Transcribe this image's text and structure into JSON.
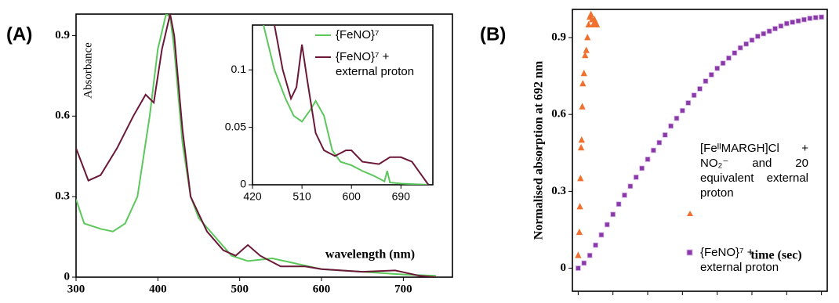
{
  "chart_data": [
    {
      "type": "line",
      "label": "(A)",
      "ylabel": "Absorbance",
      "xlabel": "wavelength (nm)",
      "xlim": [
        300,
        760
      ],
      "ylim": [
        0,
        0.98
      ],
      "xticks": [
        300,
        400,
        500,
        600,
        700
      ],
      "yticks": [
        0,
        0.3,
        0.6,
        0.9
      ],
      "series": [
        {
          "color": "#5cc85c",
          "x": [
            300,
            310,
            330,
            345,
            360,
            375,
            390,
            400,
            410,
            415,
            420,
            430,
            440,
            450,
            470,
            490,
            510,
            540,
            570,
            600,
            650,
            700,
            740
          ],
          "values": [
            0.29,
            0.2,
            0.18,
            0.17,
            0.2,
            0.3,
            0.6,
            0.85,
            0.98,
            0.97,
            0.85,
            0.5,
            0.3,
            0.22,
            0.15,
            0.08,
            0.06,
            0.07,
            0.05,
            0.03,
            0.02,
            0.01,
            0.005
          ]
        },
        {
          "color": "#6b1838",
          "x": [
            300,
            315,
            330,
            350,
            370,
            385,
            395,
            405,
            415,
            420,
            430,
            440,
            460,
            480,
            495,
            510,
            525,
            550,
            580,
            600,
            650,
            690,
            720,
            740
          ],
          "values": [
            0.48,
            0.36,
            0.38,
            0.48,
            0.6,
            0.68,
            0.65,
            0.85,
            0.98,
            0.9,
            0.55,
            0.3,
            0.17,
            0.1,
            0.08,
            0.12,
            0.08,
            0.04,
            0.04,
            0.03,
            0.02,
            0.025,
            0.005,
            0
          ]
        }
      ]
    },
    {
      "type": "line",
      "xlim": [
        420,
        748
      ],
      "ylim": [
        0,
        0.139
      ],
      "xticks": [
        420,
        510,
        600,
        690
      ],
      "yticks": [
        0,
        0.05,
        0.1
      ],
      "series": [
        {
          "name": "{FeNO}⁷",
          "color": "#5cc85c",
          "x": [
            440,
            460,
            480,
            495,
            510,
            525,
            535,
            550,
            565,
            580,
            600,
            620,
            640,
            660,
            665,
            670,
            690,
            740
          ],
          "values": [
            0.139,
            0.1,
            0.075,
            0.06,
            0.055,
            0.065,
            0.073,
            0.06,
            0.03,
            0.02,
            0.017,
            0.012,
            0.008,
            0.003,
            0.012,
            0.002,
            0.001,
            0
          ]
        },
        {
          "name": "{FeNO}⁷ + external proton",
          "color": "#6b1838",
          "x": [
            460,
            475,
            490,
            500,
            510,
            520,
            535,
            550,
            570,
            590,
            600,
            620,
            650,
            670,
            690,
            710,
            725,
            740
          ],
          "values": [
            0.139,
            0.1,
            0.075,
            0.085,
            0.122,
            0.09,
            0.045,
            0.03,
            0.025,
            0.03,
            0.03,
            0.02,
            0.018,
            0.024,
            0.024,
            0.02,
            0.01,
            0
          ]
        }
      ]
    },
    {
      "type": "scatter",
      "label": "(B)",
      "ylabel": "Normalised absorption at 692 nm",
      "xlabel": "time (sec)",
      "xlim": [
        -5,
        215
      ],
      "ylim": [
        -0.09,
        1.01
      ],
      "xticks": [
        0,
        30,
        60,
        90,
        120,
        150,
        180,
        210
      ],
      "yticks": [
        0,
        0.3,
        0.6,
        0.9
      ],
      "series": [
        {
          "name": "[FeᴵᴵMARGH]Cl + NO₂⁻ and 20 equivalent external proton",
          "color": "#f07030",
          "marker": "triangle",
          "x": [
            0,
            1,
            1.5,
            2,
            2.5,
            3,
            3.5,
            4,
            5,
            6,
            7,
            8,
            9,
            10,
            11,
            12,
            13,
            14,
            15,
            16
          ],
          "values": [
            0.05,
            0.14,
            0.24,
            0.35,
            0.47,
            0.5,
            0.63,
            0.72,
            0.76,
            0.83,
            0.85,
            0.9,
            0.95,
            0.98,
            0.99,
            0.97,
            0.95,
            0.97,
            0.96,
            0.95
          ]
        },
        {
          "name": "{FeNO}⁷ + external proton",
          "color": "#8a3aa8",
          "marker": "square",
          "x": [
            0,
            5,
            10,
            15,
            20,
            25,
            30,
            35,
            40,
            45,
            50,
            55,
            60,
            65,
            70,
            75,
            80,
            85,
            90,
            95,
            100,
            105,
            110,
            115,
            120,
            125,
            130,
            135,
            140,
            145,
            150,
            155,
            160,
            165,
            170,
            175,
            180,
            185,
            190,
            195,
            200,
            205,
            210
          ],
          "values": [
            0,
            0.02,
            0.05,
            0.09,
            0.13,
            0.17,
            0.21,
            0.25,
            0.285,
            0.32,
            0.355,
            0.39,
            0.425,
            0.46,
            0.49,
            0.52,
            0.555,
            0.585,
            0.615,
            0.645,
            0.675,
            0.7,
            0.73,
            0.755,
            0.78,
            0.8,
            0.82,
            0.84,
            0.86,
            0.875,
            0.89,
            0.905,
            0.915,
            0.925,
            0.935,
            0.945,
            0.955,
            0.96,
            0.965,
            0.97,
            0.975,
            0.978,
            0.98
          ]
        }
      ]
    }
  ]
}
